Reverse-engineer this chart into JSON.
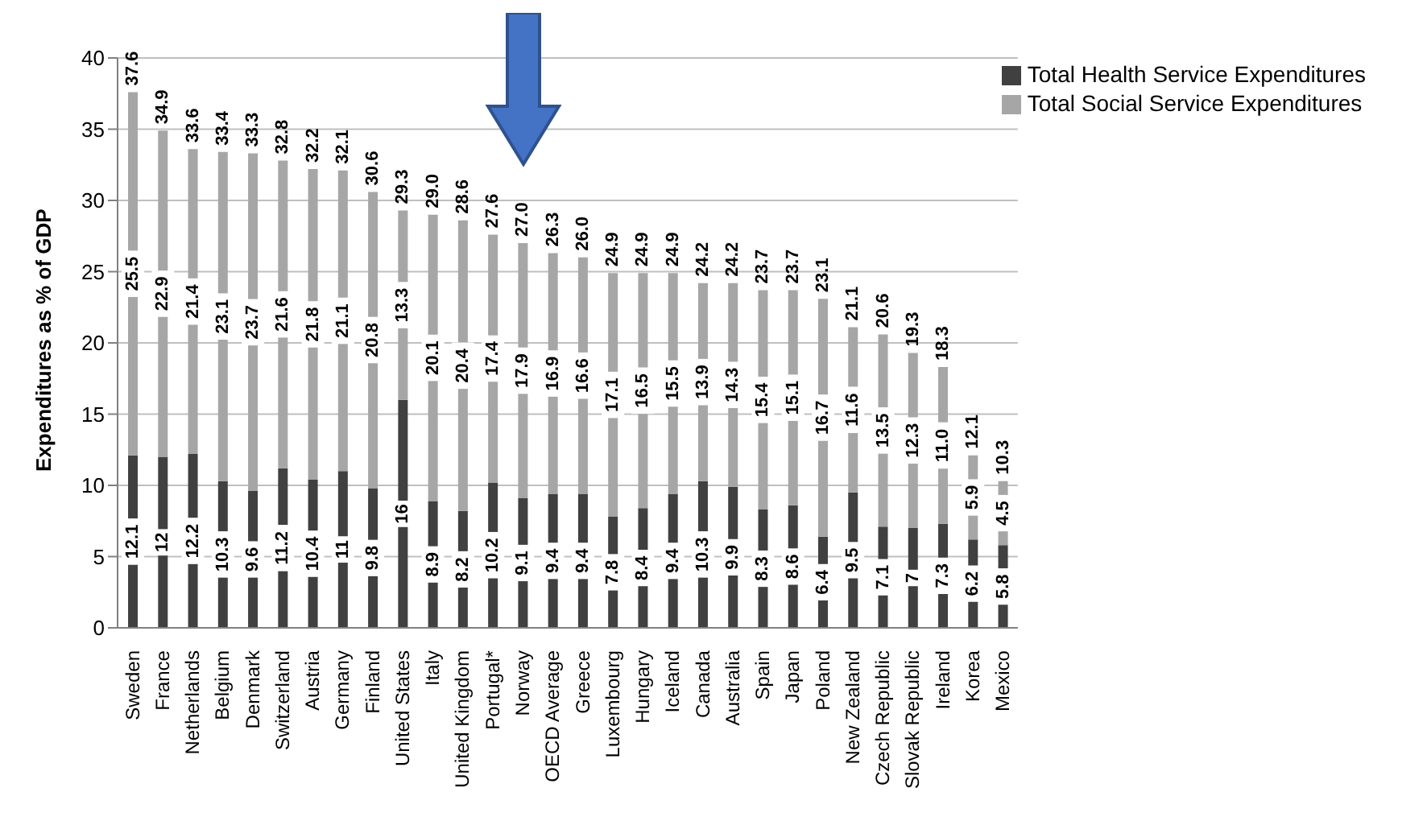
{
  "chart_data": {
    "type": "bar",
    "stacked": true,
    "ylabel": "Expenditures as % of GDP",
    "ylim": [
      0,
      40
    ],
    "yticks": [
      0,
      5,
      10,
      15,
      20,
      25,
      30,
      35,
      40
    ],
    "grid": "y",
    "legend": "top right",
    "categories": [
      "Sweden",
      "France",
      "Netherlands",
      "Belgium",
      "Denmark",
      "Switzerland",
      "Austria",
      "Germany",
      "Finland",
      "United States",
      "Italy",
      "United Kingdom",
      "Portugal*",
      "Norway",
      "OECD Average",
      "Greece",
      "Luxembourg",
      "Hungary",
      "Iceland",
      "Canada",
      "Australia",
      "Spain",
      "Japan",
      "Poland",
      "New Zealand",
      "Czech Republic",
      "Slovak Republic",
      "Ireland",
      "Korea",
      "Mexico"
    ],
    "series": [
      {
        "name": "Total Health Service Expenditures",
        "color": "#404040",
        "values": [
          12.1,
          12,
          12.2,
          10.3,
          9.6,
          11.2,
          10.4,
          11,
          9.8,
          16,
          8.9,
          8.2,
          10.2,
          9.1,
          9.4,
          9.4,
          7.8,
          8.4,
          9.4,
          10.3,
          9.9,
          8.3,
          8.6,
          6.4,
          9.5,
          7.1,
          7,
          7.3,
          6.2,
          5.8
        ],
        "value_labels": [
          "12.1",
          "12",
          "12.2",
          "10.3",
          "9.6",
          "11.2",
          "10.4",
          "11",
          "9.8",
          "16",
          "8.9",
          "8.2",
          "10.2",
          "9.1",
          "9.4",
          "9.4",
          "7.8",
          "8.4",
          "9.4",
          "10.3",
          "9.9",
          "8.3",
          "8.6",
          "6.4",
          "9.5",
          "7.1",
          "7",
          "7.3",
          "6.2",
          "5.8"
        ]
      },
      {
        "name": "Total Social Service Expenditures",
        "color": "#a6a6a6",
        "values": [
          25.5,
          22.9,
          21.4,
          23.1,
          23.7,
          21.6,
          21.8,
          21.1,
          20.8,
          13.3,
          20.1,
          20.4,
          17.4,
          17.9,
          16.9,
          16.6,
          17.1,
          16.5,
          15.5,
          13.9,
          14.3,
          15.4,
          15.1,
          16.7,
          11.6,
          13.5,
          12.3,
          11.0,
          5.9,
          4.5
        ],
        "value_labels": [
          "25.5",
          "22.9",
          "21.4",
          "23.1",
          "23.7",
          "21.6",
          "21.8",
          "21.1",
          "20.8",
          "13.3",
          "20.1",
          "20.4",
          "17.4",
          "17.9",
          "16.9",
          "16.6",
          "17.1",
          "16.5",
          "15.5",
          "13.9",
          "14.3",
          "15.4",
          "15.1",
          "16.7",
          "11.6",
          "13.5",
          "12.3",
          "11.0",
          "5.9",
          "4.5"
        ]
      }
    ],
    "totals": [
      "37.6",
      "34.9",
      "33.6",
      "33.4",
      "33.3",
      "32.8",
      "32.2",
      "32.1",
      "30.6",
      "29.3",
      "29.0",
      "28.6",
      "27.6",
      "27.0",
      "26.3",
      "26.0",
      "24.9",
      "24.9",
      "24.9",
      "24.2",
      "24.2",
      "23.7",
      "23.7",
      "23.1",
      "21.1",
      "20.6",
      "19.3",
      "18.3",
      "12.1",
      "10.3"
    ]
  }
}
